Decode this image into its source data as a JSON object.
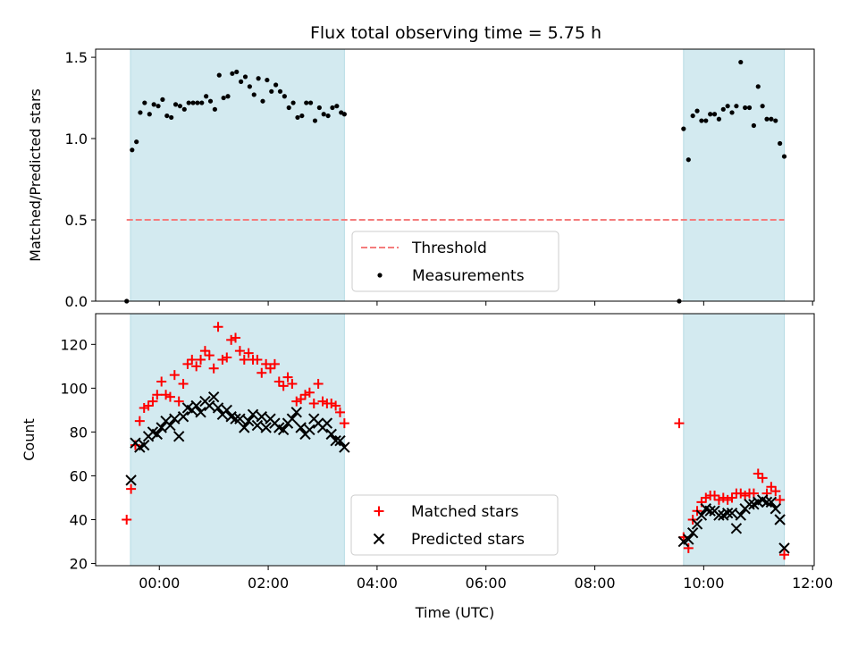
{
  "title": "Flux total observing time = 5.75 h",
  "chart_data": [
    {
      "type": "scatter",
      "ylabel": "Matched/Predicted stars",
      "xlabel": "",
      "xlim_hours": [
        -1.17,
        12.03
      ],
      "ylim": [
        0,
        1.55
      ],
      "xticks": [
        0,
        2,
        4,
        6,
        8,
        10,
        12
      ],
      "yticks": [
        0.0,
        0.5,
        1.0,
        1.5
      ],
      "ytick_labels": [
        "0.0",
        "0.5",
        "1.0",
        "1.5"
      ],
      "shaded_intervals_hours": [
        [
          -0.53,
          3.4
        ],
        [
          9.63,
          11.48
        ]
      ],
      "threshold": {
        "name": "Threshold",
        "value": 0.5,
        "x_range_hours": [
          -0.6,
          11.48
        ],
        "color": "#f47c7c"
      },
      "legend": {
        "position": "lower-center",
        "entries": [
          "Threshold",
          "Measurements"
        ]
      },
      "series": [
        {
          "name": "Measurements",
          "color": "#000000",
          "points": [
            [
              -0.6,
              0.0
            ],
            [
              -0.5,
              0.93
            ],
            [
              -0.42,
              0.98
            ],
            [
              -0.35,
              1.16
            ],
            [
              -0.27,
              1.22
            ],
            [
              -0.18,
              1.15
            ],
            [
              -0.1,
              1.21
            ],
            [
              -0.02,
              1.2
            ],
            [
              0.06,
              1.24
            ],
            [
              0.14,
              1.14
            ],
            [
              0.22,
              1.13
            ],
            [
              0.3,
              1.21
            ],
            [
              0.38,
              1.2
            ],
            [
              0.46,
              1.18
            ],
            [
              0.54,
              1.22
            ],
            [
              0.62,
              1.22
            ],
            [
              0.7,
              1.22
            ],
            [
              0.78,
              1.22
            ],
            [
              0.86,
              1.26
            ],
            [
              0.94,
              1.23
            ],
            [
              1.02,
              1.18
            ],
            [
              1.1,
              1.39
            ],
            [
              1.18,
              1.25
            ],
            [
              1.26,
              1.26
            ],
            [
              1.34,
              1.4
            ],
            [
              1.42,
              1.41
            ],
            [
              1.5,
              1.35
            ],
            [
              1.58,
              1.38
            ],
            [
              1.66,
              1.32
            ],
            [
              1.74,
              1.27
            ],
            [
              1.82,
              1.37
            ],
            [
              1.9,
              1.23
            ],
            [
              1.98,
              1.36
            ],
            [
              2.06,
              1.29
            ],
            [
              2.14,
              1.33
            ],
            [
              2.22,
              1.29
            ],
            [
              2.3,
              1.26
            ],
            [
              2.38,
              1.19
            ],
            [
              2.46,
              1.22
            ],
            [
              2.54,
              1.13
            ],
            [
              2.62,
              1.14
            ],
            [
              2.7,
              1.22
            ],
            [
              2.78,
              1.22
            ],
            [
              2.86,
              1.11
            ],
            [
              2.94,
              1.19
            ],
            [
              3.02,
              1.15
            ],
            [
              3.1,
              1.14
            ],
            [
              3.18,
              1.19
            ],
            [
              3.26,
              1.2
            ],
            [
              3.34,
              1.16
            ],
            [
              3.4,
              1.15
            ],
            [
              9.55,
              0.0
            ],
            [
              9.63,
              1.06
            ],
            [
              9.72,
              0.87
            ],
            [
              9.8,
              1.14
            ],
            [
              9.88,
              1.17
            ],
            [
              9.96,
              1.11
            ],
            [
              10.04,
              1.11
            ],
            [
              10.12,
              1.15
            ],
            [
              10.2,
              1.15
            ],
            [
              10.28,
              1.12
            ],
            [
              10.36,
              1.18
            ],
            [
              10.44,
              1.2
            ],
            [
              10.52,
              1.16
            ],
            [
              10.6,
              1.2
            ],
            [
              10.68,
              1.47
            ],
            [
              10.76,
              1.19
            ],
            [
              10.84,
              1.19
            ],
            [
              10.92,
              1.08
            ],
            [
              11.0,
              1.32
            ],
            [
              11.08,
              1.2
            ],
            [
              11.16,
              1.12
            ],
            [
              11.24,
              1.12
            ],
            [
              11.32,
              1.11
            ],
            [
              11.4,
              0.97
            ],
            [
              11.48,
              0.89
            ]
          ]
        }
      ]
    },
    {
      "type": "scatter",
      "ylabel": "Count",
      "xlabel": "Time (UTC)",
      "xlim_hours": [
        -1.17,
        12.03
      ],
      "ylim": [
        19,
        134
      ],
      "xticks": [
        0,
        2,
        4,
        6,
        8,
        10,
        12
      ],
      "xtick_labels": [
        "00:00",
        "02:00",
        "04:00",
        "06:00",
        "08:00",
        "10:00",
        "12:00"
      ],
      "yticks": [
        20,
        40,
        60,
        80,
        100,
        120
      ],
      "ytick_labels": [
        "20",
        "40",
        "60",
        "80",
        "100",
        "120"
      ],
      "shaded_intervals_hours": [
        [
          -0.53,
          3.4
        ],
        [
          9.63,
          11.48
        ]
      ],
      "legend": {
        "position": "lower-center",
        "entries": [
          "Matched stars",
          "Predicted stars"
        ]
      },
      "series": [
        {
          "name": "Matched stars",
          "marker": "plus",
          "color": "#ff0000",
          "points": [
            [
              -0.6,
              40
            ],
            [
              -0.52,
              54
            ],
            [
              -0.44,
              74
            ],
            [
              -0.36,
              85
            ],
            [
              -0.28,
              91
            ],
            [
              -0.2,
              92
            ],
            [
              -0.12,
              94
            ],
            [
              -0.04,
              97
            ],
            [
              0.04,
              103
            ],
            [
              0.12,
              97
            ],
            [
              0.2,
              96
            ],
            [
              0.28,
              106
            ],
            [
              0.36,
              94
            ],
            [
              0.44,
              102
            ],
            [
              0.52,
              111
            ],
            [
              0.6,
              113
            ],
            [
              0.68,
              110
            ],
            [
              0.76,
              113
            ],
            [
              0.84,
              117
            ],
            [
              0.92,
              115
            ],
            [
              1.0,
              109
            ],
            [
              1.08,
              128
            ],
            [
              1.16,
              113
            ],
            [
              1.24,
              114
            ],
            [
              1.32,
              122
            ],
            [
              1.4,
              123
            ],
            [
              1.48,
              117
            ],
            [
              1.56,
              113
            ],
            [
              1.64,
              116
            ],
            [
              1.72,
              113
            ],
            [
              1.8,
              113
            ],
            [
              1.88,
              107
            ],
            [
              1.96,
              111
            ],
            [
              2.04,
              109
            ],
            [
              2.12,
              111
            ],
            [
              2.2,
              103
            ],
            [
              2.28,
              101
            ],
            [
              2.36,
              105
            ],
            [
              2.44,
              102
            ],
            [
              2.52,
              94
            ],
            [
              2.6,
              95
            ],
            [
              2.68,
              97
            ],
            [
              2.76,
              98
            ],
            [
              2.84,
              93
            ],
            [
              2.92,
              102
            ],
            [
              3.0,
              94
            ],
            [
              3.08,
              93
            ],
            [
              3.16,
              93
            ],
            [
              3.24,
              92
            ],
            [
              3.32,
              89
            ],
            [
              3.4,
              84
            ],
            [
              9.55,
              84
            ],
            [
              9.63,
              32
            ],
            [
              9.72,
              27
            ],
            [
              9.8,
              40
            ],
            [
              9.88,
              44
            ],
            [
              9.96,
              48
            ],
            [
              10.04,
              50
            ],
            [
              10.12,
              51
            ],
            [
              10.2,
              51
            ],
            [
              10.28,
              49
            ],
            [
              10.36,
              50
            ],
            [
              10.44,
              49
            ],
            [
              10.52,
              50
            ],
            [
              10.6,
              52
            ],
            [
              10.68,
              52
            ],
            [
              10.76,
              51
            ],
            [
              10.84,
              52
            ],
            [
              10.92,
              52
            ],
            [
              11.0,
              61
            ],
            [
              11.08,
              59
            ],
            [
              11.16,
              52
            ],
            [
              11.24,
              55
            ],
            [
              11.32,
              53
            ],
            [
              11.4,
              49
            ],
            [
              11.48,
              24
            ]
          ]
        },
        {
          "name": "Predicted stars",
          "marker": "x",
          "color": "#000000",
          "points": [
            [
              -0.52,
              58
            ],
            [
              -0.44,
              75
            ],
            [
              -0.36,
              73
            ],
            [
              -0.28,
              74
            ],
            [
              -0.2,
              78
            ],
            [
              -0.12,
              80
            ],
            [
              -0.04,
              79
            ],
            [
              0.04,
              82
            ],
            [
              0.12,
              85
            ],
            [
              0.2,
              83
            ],
            [
              0.28,
              86
            ],
            [
              0.36,
              78
            ],
            [
              0.44,
              87
            ],
            [
              0.52,
              91
            ],
            [
              0.6,
              90
            ],
            [
              0.68,
              92
            ],
            [
              0.76,
              89
            ],
            [
              0.84,
              94
            ],
            [
              0.92,
              92
            ],
            [
              1.0,
              96
            ],
            [
              1.08,
              91
            ],
            [
              1.16,
              88
            ],
            [
              1.24,
              90
            ],
            [
              1.32,
              87
            ],
            [
              1.4,
              86
            ],
            [
              1.48,
              86
            ],
            [
              1.56,
              82
            ],
            [
              1.64,
              85
            ],
            [
              1.72,
              88
            ],
            [
              1.8,
              83
            ],
            [
              1.88,
              87
            ],
            [
              1.96,
              82
            ],
            [
              2.04,
              86
            ],
            [
              2.12,
              84
            ],
            [
              2.2,
              82
            ],
            [
              2.28,
              81
            ],
            [
              2.36,
              84
            ],
            [
              2.44,
              86
            ],
            [
              2.52,
              89
            ],
            [
              2.6,
              82
            ],
            [
              2.68,
              79
            ],
            [
              2.76,
              81
            ],
            [
              2.84,
              86
            ],
            [
              2.92,
              84
            ],
            [
              3.0,
              82
            ],
            [
              3.08,
              84
            ],
            [
              3.16,
              79
            ],
            [
              3.24,
              76
            ],
            [
              3.32,
              76
            ],
            [
              3.4,
              73
            ],
            [
              9.63,
              30
            ],
            [
              9.72,
              31
            ],
            [
              9.8,
              34
            ],
            [
              9.88,
              38
            ],
            [
              9.96,
              42
            ],
            [
              10.04,
              45
            ],
            [
              10.12,
              44
            ],
            [
              10.2,
              44
            ],
            [
              10.28,
              42
            ],
            [
              10.36,
              42
            ],
            [
              10.44,
              43
            ],
            [
              10.52,
              43
            ],
            [
              10.6,
              36
            ],
            [
              10.68,
              42
            ],
            [
              10.76,
              45
            ],
            [
              10.84,
              47
            ],
            [
              10.92,
              47
            ],
            [
              11.0,
              48
            ],
            [
              11.08,
              49
            ],
            [
              11.16,
              48
            ],
            [
              11.24,
              48
            ],
            [
              11.32,
              45
            ],
            [
              11.4,
              40
            ],
            [
              11.48,
              27
            ]
          ]
        }
      ]
    }
  ],
  "colors": {
    "shade": "#d3eaf0",
    "shade_edge": "#b6dbe4"
  }
}
